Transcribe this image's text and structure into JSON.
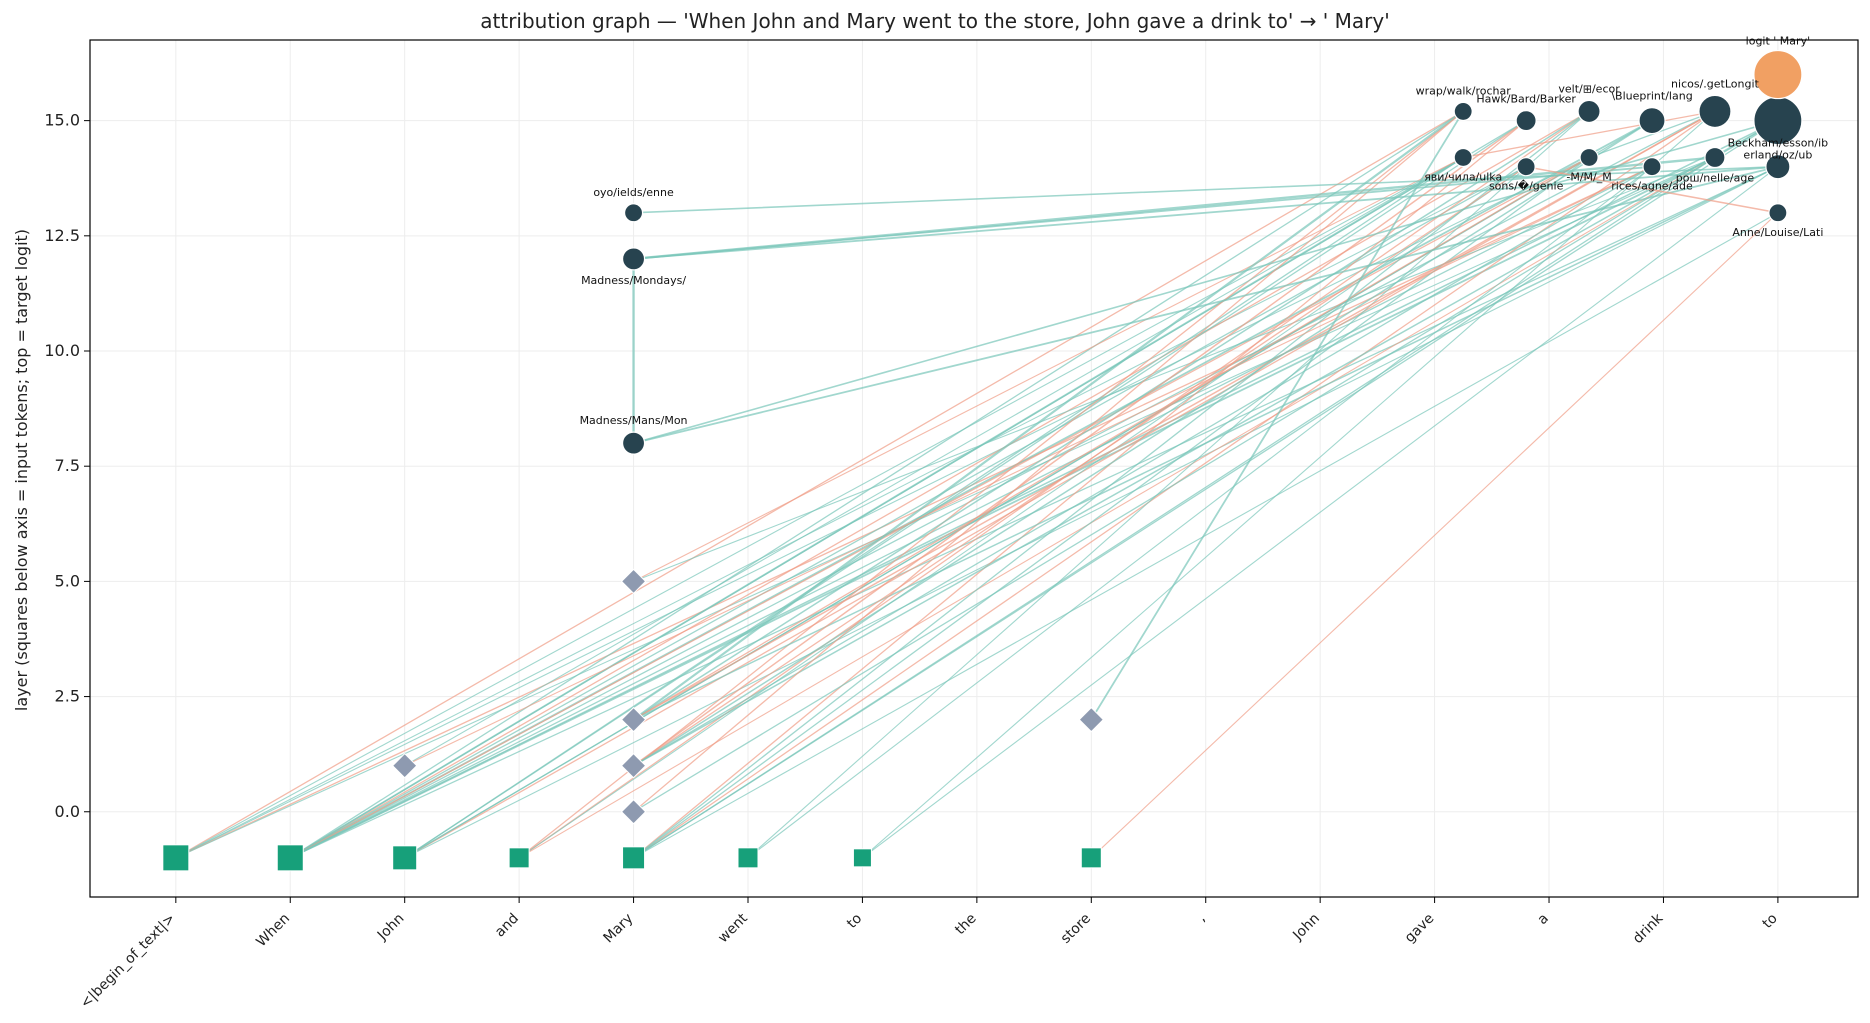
{
  "chart_data": {
    "type": "scatter",
    "title": "attribution graph — 'When John and Mary went to the store, John gave a drink to' → ' Mary'",
    "ylabel": "layer (squares below axis = input tokens; top = target logit)",
    "xlabel": "",
    "xlim": [
      -0.75,
      14.7
    ],
    "ylim": [
      -1.85,
      16.75
    ],
    "yticks": [
      0.0,
      2.5,
      5.0,
      7.5,
      10.0,
      12.5,
      15.0
    ],
    "ytick_labels": [
      "0.0",
      "2.5",
      "5.0",
      "7.5",
      "10.0",
      "12.5",
      "15.0"
    ],
    "grid": true,
    "legend": null,
    "tokens": [
      "<|begin_of_text|>",
      "When",
      "John",
      "and",
      "Mary",
      "went",
      "to",
      "the",
      "store",
      ",",
      "John",
      "gave",
      "a",
      "drink",
      "to"
    ],
    "colors": {
      "feature": "#27434f",
      "logit": "#f1a063",
      "input": "#17a07a",
      "error": "#8e9ab0",
      "edge_pos": "#79c6b9",
      "edge_neg": "#ef9d86",
      "grid": "#ededed"
    },
    "input_nodes": [
      {
        "x": 0,
        "y": -1,
        "size": 13
      },
      {
        "x": 1,
        "y": -1,
        "size": 13
      },
      {
        "x": 2,
        "y": -1,
        "size": 12
      },
      {
        "x": 3,
        "y": -1,
        "size": 10
      },
      {
        "x": 4,
        "y": -1,
        "size": 11
      },
      {
        "x": 5,
        "y": -1,
        "size": 10
      },
      {
        "x": 6,
        "y": -1,
        "size": 9
      },
      {
        "x": 8,
        "y": -1,
        "size": 10
      }
    ],
    "error_nodes": [
      {
        "x": 2,
        "y": 1
      },
      {
        "x": 4,
        "y": 5
      },
      {
        "x": 4,
        "y": 2
      },
      {
        "x": 4,
        "y": 1
      },
      {
        "x": 4,
        "y": 0
      },
      {
        "x": 8,
        "y": 2
      }
    ],
    "feature_nodes": [
      {
        "id": "f1",
        "x": 4,
        "y": 13,
        "label": "oyo/ields/enne",
        "size": 9,
        "lpos": "above"
      },
      {
        "id": "f2",
        "x": 4,
        "y": 12,
        "label": "Madness/Mondays/",
        "size": 11,
        "lpos": "below"
      },
      {
        "id": "f3",
        "x": 4,
        "y": 8,
        "label": "Madness/Mans/Mon",
        "size": 11,
        "lpos": "above"
      },
      {
        "id": "f4",
        "x": 11.25,
        "y": 15.2,
        "label": "wrap/walk/rochar",
        "size": 9,
        "lpos": "above"
      },
      {
        "id": "f5",
        "x": 11.8,
        "y": 15.0,
        "label": "Hawk/Bard/Barker",
        "size": 10,
        "lpos": "above"
      },
      {
        "id": "f6",
        "x": 12.35,
        "y": 15.2,
        "label": "velt/⊞/ecor",
        "size": 11,
        "lpos": "above"
      },
      {
        "id": "f7",
        "x": 12.9,
        "y": 15.0,
        "label": "\\Blueprint/lang",
        "size": 13,
        "lpos": "above"
      },
      {
        "id": "f8",
        "x": 13.45,
        "y": 15.2,
        "label": "nicos/.getLongit",
        "size": 16,
        "lpos": "above"
      },
      {
        "id": "f9",
        "x": 14.0,
        "y": 15.0,
        "label": "erland/oz/ub",
        "size": 24,
        "lpos": "below"
      },
      {
        "id": "f10",
        "x": 11.25,
        "y": 14.2,
        "label": "яви/чила/ulka",
        "size": 9,
        "lpos": "below"
      },
      {
        "id": "f11",
        "x": 11.8,
        "y": 14.0,
        "label": "sons/�/genie",
        "size": 9,
        "lpos": "below"
      },
      {
        "id": "f12",
        "x": 12.35,
        "y": 14.2,
        "label": "-M/M/_M",
        "size": 9,
        "lpos": "below"
      },
      {
        "id": "f13",
        "x": 12.9,
        "y": 14.0,
        "label": "rices/agne/ade",
        "size": 9,
        "lpos": "below"
      },
      {
        "id": "f14",
        "x": 13.45,
        "y": 14.2,
        "label": "рош/nelle/age",
        "size": 10,
        "lpos": "below"
      },
      {
        "id": "f15",
        "x": 14.0,
        "y": 14.0,
        "label": "Beckham/esson/ib",
        "size": 12,
        "lpos": "above"
      },
      {
        "id": "f16",
        "x": 14.0,
        "y": 13.0,
        "label": "Anne/Louise/Lati",
        "size": 9,
        "lpos": "below"
      }
    ],
    "logit_node": {
      "x": 14.0,
      "y": 16.0,
      "label": "logit ' Mary'",
      "size": 24
    },
    "edges_from_top": [
      [
        "f1",
        "f15",
        "pos",
        1.6
      ],
      [
        "f2",
        "f14",
        "pos",
        2.4
      ],
      [
        "f2",
        "f15",
        "pos",
        1.8
      ],
      [
        "f2",
        "f13",
        "pos",
        1.8
      ],
      [
        "f2",
        "f3",
        "pos",
        2.4
      ],
      [
        "f3",
        "f15",
        "pos",
        1.8
      ],
      [
        "f3",
        "f9",
        "pos",
        1.6
      ],
      [
        "f16",
        "f11",
        "neg",
        1.5
      ],
      [
        "f10",
        "f8",
        "neg",
        1.3
      ],
      [
        "f12",
        "f8",
        "pos",
        1.3
      ],
      [
        "f14",
        "f9",
        "pos",
        1.3
      ]
    ],
    "edges_from_input": [
      [
        0,
        "f4",
        "neg",
        1.3
      ],
      [
        0,
        "f10",
        "pos",
        1.1
      ],
      [
        0,
        "f11",
        "pos",
        1.1
      ],
      [
        0,
        "f12",
        "pos",
        1.1
      ],
      [
        0,
        "f13",
        "neg",
        1.3
      ],
      [
        0,
        "f14",
        "pos",
        1.1
      ],
      [
        1,
        "f4",
        "pos",
        1.3
      ],
      [
        1,
        "f5",
        "pos",
        1.3
      ],
      [
        1,
        "f6",
        "neg",
        1.3
      ],
      [
        1,
        "f7",
        "pos",
        1.8
      ],
      [
        1,
        "f8",
        "pos",
        1.3
      ],
      [
        1,
        "f9",
        "pos",
        1.5
      ],
      [
        1,
        "f10",
        "pos",
        1.8
      ],
      [
        1,
        "f11",
        "pos",
        1.3
      ],
      [
        1,
        "f12",
        "neg",
        1.3
      ],
      [
        1,
        "f13",
        "pos",
        1.3
      ],
      [
        1,
        "f14",
        "pos",
        1.8
      ],
      [
        1,
        "f15",
        "pos",
        1.3
      ],
      [
        2,
        "f5",
        "pos",
        1.3
      ],
      [
        2,
        "f7",
        "pos",
        1.3
      ],
      [
        2,
        "f8",
        "neg",
        1.3
      ],
      [
        2,
        "f10",
        "pos",
        1.3
      ],
      [
        2,
        "f12",
        "pos",
        1.3
      ],
      [
        2,
        "f15",
        "pos",
        1.1
      ],
      [
        3,
        "f4",
        "neg",
        1.3
      ],
      [
        3,
        "f6",
        "neg",
        1.3
      ],
      [
        3,
        "f11",
        "pos",
        1.1
      ],
      [
        3,
        "f14",
        "neg",
        1.1
      ],
      [
        4,
        "f5",
        "neg",
        1.3
      ],
      [
        4,
        "f6",
        "pos",
        1.3
      ],
      [
        4,
        "f8",
        "neg",
        1.3
      ],
      [
        4,
        "f9",
        "pos",
        1.3
      ],
      [
        4,
        "f12",
        "pos",
        1.3
      ],
      [
        4,
        "f14",
        "pos",
        1.3
      ],
      [
        4,
        "f16",
        "pos",
        1.1
      ],
      [
        5,
        "f6",
        "pos",
        1.1
      ],
      [
        5,
        "f13",
        "pos",
        1.1
      ],
      [
        6,
        "f8",
        "pos",
        1.1
      ],
      [
        6,
        "f15",
        "pos",
        1.1
      ],
      [
        8,
        "f16",
        "neg",
        1.1
      ]
    ],
    "edges_from_error": [
      [
        0,
        "f10",
        "pos",
        1.1
      ],
      [
        0,
        "f13",
        "neg",
        1.1
      ],
      [
        1,
        "f10",
        "neg",
        1.1
      ],
      [
        1,
        "f14",
        "pos",
        1.1
      ],
      [
        2,
        "f4",
        "pos",
        2.2
      ],
      [
        2,
        "f6",
        "pos",
        1.5
      ],
      [
        2,
        "f8",
        "neg",
        1.5
      ],
      [
        2,
        "f12",
        "neg",
        1.3
      ],
      [
        2,
        "f15",
        "pos",
        1.5
      ],
      [
        3,
        "f5",
        "neg",
        1.5
      ],
      [
        3,
        "f7",
        "pos",
        1.5
      ],
      [
        3,
        "f11",
        "neg",
        1.3
      ],
      [
        3,
        "f13",
        "pos",
        1.3
      ],
      [
        3,
        "f9",
        "pos",
        1.5
      ],
      [
        4,
        "f4",
        "neg",
        1.3
      ],
      [
        4,
        "f14",
        "pos",
        1.3
      ],
      [
        5,
        "f4",
        "pos",
        1.8
      ]
    ]
  }
}
